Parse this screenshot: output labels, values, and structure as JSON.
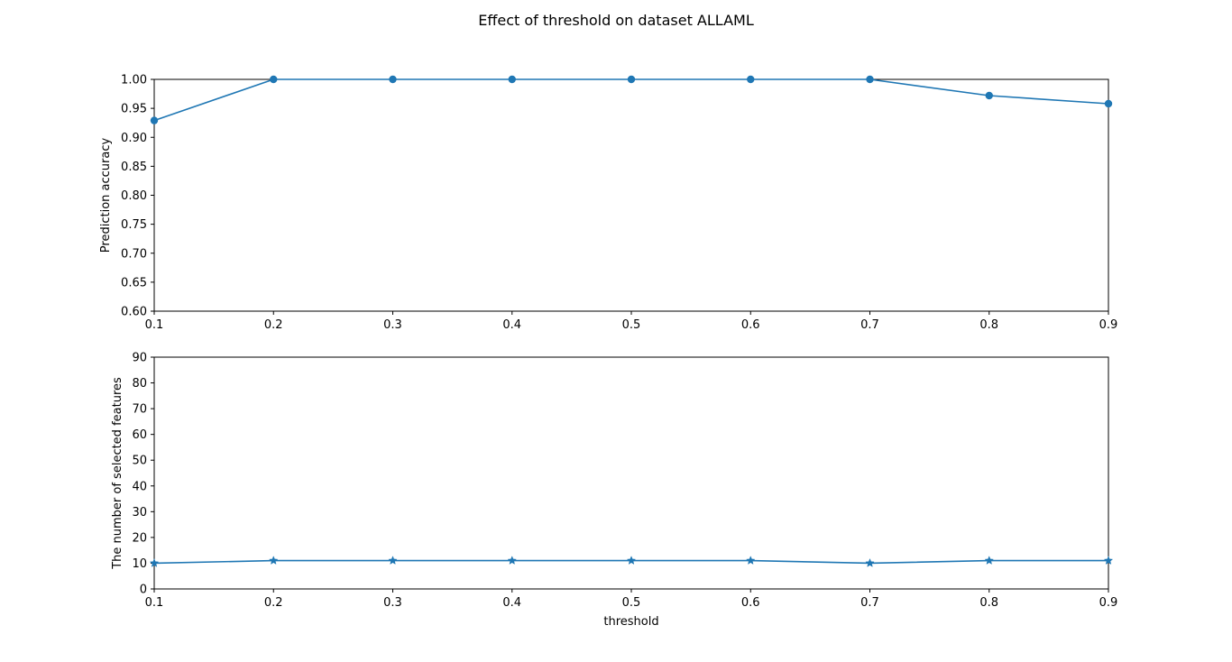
{
  "figure": {
    "suptitle": "Effect of threshold on dataset ALLAML"
  },
  "colors": {
    "series": "#1f77b4",
    "axis": "#000000",
    "background": "#ffffff"
  },
  "chart_data": [
    {
      "type": "line",
      "marker": "circle",
      "title": "",
      "xlabel": "",
      "ylabel": "Prediction accuracy",
      "xlim": [
        0.1,
        0.9
      ],
      "ylim": [
        0.6,
        1.0
      ],
      "grid": false,
      "xticks": [
        "0.1",
        "0.2",
        "0.3",
        "0.4",
        "0.5",
        "0.6",
        "0.7",
        "0.8",
        "0.9"
      ],
      "yticks": [
        "0.60",
        "0.65",
        "0.70",
        "0.75",
        "0.80",
        "0.85",
        "0.90",
        "0.95",
        "1.00"
      ],
      "x": [
        0.1,
        0.2,
        0.3,
        0.4,
        0.5,
        0.6,
        0.7,
        0.8,
        0.9
      ],
      "values": [
        0.929,
        1.0,
        1.0,
        1.0,
        1.0,
        1.0,
        1.0,
        0.972,
        0.958
      ]
    },
    {
      "type": "line",
      "marker": "star",
      "title": "",
      "xlabel": "threshold",
      "ylabel": "The number of selected features",
      "xlim": [
        0.1,
        0.9
      ],
      "ylim": [
        0,
        90
      ],
      "grid": false,
      "xticks": [
        "0.1",
        "0.2",
        "0.3",
        "0.4",
        "0.5",
        "0.6",
        "0.7",
        "0.8",
        "0.9"
      ],
      "yticks": [
        "0",
        "10",
        "20",
        "30",
        "40",
        "50",
        "60",
        "70",
        "80",
        "90"
      ],
      "x": [
        0.1,
        0.2,
        0.3,
        0.4,
        0.5,
        0.6,
        0.7,
        0.8,
        0.9
      ],
      "values": [
        10,
        11,
        11,
        11,
        11,
        11,
        10,
        11,
        11
      ]
    }
  ]
}
